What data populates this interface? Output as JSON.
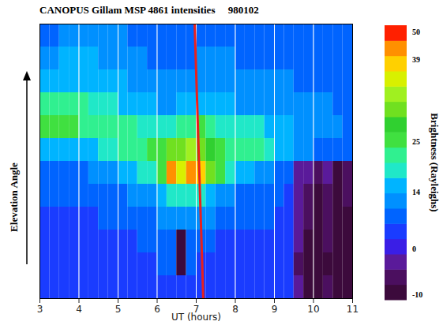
{
  "chart_data": {
    "type": "heatmap",
    "title": "CANOPUS Gillam MSP 4861 intensities     980102",
    "xlabel": "UT (hours)",
    "ylabel": "Elevation Angle",
    "xlim": [
      3,
      11
    ],
    "xticks": [
      3,
      4,
      5,
      6,
      7,
      8,
      9,
      10,
      11
    ],
    "ylim": [
      0,
      180
    ],
    "tick_labels": "x",
    "grid": true,
    "x": [
      3,
      3.25,
      3.5,
      3.75,
      4,
      4.25,
      4.5,
      4.75,
      5,
      5.25,
      5.5,
      5.75,
      6,
      6.25,
      6.5,
      6.75,
      7,
      7.25,
      7.5,
      7.75,
      8,
      8.25,
      8.5,
      8.75,
      9,
      9.25,
      9.5,
      9.75,
      10,
      10.25,
      10.5,
      10.75,
      11
    ],
    "y": [
      0,
      15,
      30,
      45,
      60,
      75,
      90,
      105,
      120,
      135,
      150,
      165,
      180
    ],
    "values": [
      [
        4,
        4,
        4,
        4,
        4,
        4,
        4,
        4,
        4,
        4,
        4,
        4,
        4,
        4,
        4,
        4,
        4,
        4,
        4,
        4,
        4,
        4,
        4,
        4,
        4,
        3,
        -4,
        -8,
        -9,
        -7,
        -10,
        -9
      ],
      [
        4,
        4,
        4,
        4,
        4,
        4,
        4,
        4,
        4,
        4,
        4,
        4,
        6,
        6,
        -12,
        6,
        5,
        5,
        5,
        4,
        4,
        4,
        4,
        4,
        4,
        3,
        -5,
        -9,
        -10,
        -8,
        -11,
        -10
      ],
      [
        4,
        4,
        4,
        4,
        4,
        4,
        5,
        5,
        5,
        5,
        6,
        6,
        7,
        8,
        -12,
        8,
        7,
        6,
        5,
        5,
        5,
        5,
        5,
        5,
        4,
        4,
        -3,
        -8,
        -10,
        -7,
        -11,
        -9
      ],
      [
        5,
        5,
        5,
        5,
        5,
        5,
        6,
        6,
        7,
        7,
        8,
        9,
        11,
        13,
        13,
        13,
        12,
        10,
        8,
        7,
        6,
        6,
        6,
        6,
        5,
        4,
        -4,
        -7,
        -9,
        -6,
        -10,
        -8
      ],
      [
        6,
        6,
        6,
        6,
        6,
        7,
        7,
        8,
        9,
        10,
        11,
        13,
        16,
        19,
        20,
        20,
        19,
        16,
        13,
        11,
        9,
        8,
        7,
        7,
        6,
        5,
        -3,
        -6,
        -8,
        -5,
        -9,
        -7
      ],
      [
        8,
        8,
        8,
        8,
        9,
        10,
        11,
        13,
        15,
        16,
        18,
        20,
        24,
        40,
        36,
        40,
        38,
        30,
        24,
        20,
        17,
        15,
        13,
        11,
        8,
        6,
        -2,
        -4,
        -6,
        -4,
        -8,
        -6
      ],
      [
        15,
        16,
        16,
        15,
        16,
        17,
        18,
        20,
        22,
        23,
        23,
        24,
        25,
        30,
        30,
        33,
        31,
        27,
        25,
        23,
        22,
        22,
        21,
        20,
        16,
        14,
        12,
        10,
        8,
        7,
        6,
        6
      ],
      [
        24,
        25,
        25,
        24,
        23,
        22,
        22,
        22,
        21,
        21,
        20,
        19,
        18,
        19,
        21,
        23,
        24,
        22,
        20,
        19,
        19,
        19,
        18,
        17,
        15,
        14,
        13,
        12,
        11,
        10,
        10,
        9
      ],
      [
        22,
        23,
        23,
        22,
        21,
        20,
        20,
        19,
        17,
        16,
        15,
        14,
        13,
        13,
        14,
        15,
        16,
        16,
        15,
        14,
        13,
        13,
        13,
        13,
        12,
        12,
        11,
        11,
        10,
        10,
        9,
        9
      ],
      [
        16,
        17,
        17,
        16,
        16,
        16,
        15,
        15,
        14,
        13,
        12,
        11,
        10,
        10,
        11,
        12,
        13,
        13,
        13,
        12,
        11,
        10,
        10,
        10,
        10,
        10,
        9,
        9,
        9,
        8,
        8,
        8
      ],
      [
        12,
        13,
        14,
        14,
        14,
        14,
        13,
        13,
        12,
        11,
        10,
        9,
        8,
        8,
        8,
        9,
        10,
        11,
        11,
        10,
        9,
        8,
        8,
        8,
        8,
        8,
        7,
        7,
        7,
        7,
        7,
        7
      ],
      [
        8,
        9,
        10,
        11,
        12,
        12,
        12,
        11,
        10,
        9,
        8,
        7,
        6,
        6,
        6,
        6,
        7,
        8,
        9,
        8,
        7,
        6,
        6,
        6,
        6,
        6,
        6,
        6,
        6,
        6,
        6,
        6
      ]
    ],
    "line": {
      "x": [
        6.96,
        7.18
      ],
      "y": [
        180,
        0
      ],
      "color": "#e8201c"
    },
    "colorbar": {
      "label": "Brightness (Rayleighs)",
      "bounds": [
        -11,
        -7.5,
        -4,
        -1,
        2.5,
        6,
        10,
        14,
        17.5,
        21,
        24,
        27,
        29.5,
        32,
        34.5,
        37,
        40,
        46,
        54
      ],
      "colors": [
        "#3c0a3c",
        "#4b0f5f",
        "#5a1a9a",
        "#3a1ee6",
        "#1a3cff",
        "#0064ff",
        "#0090ff",
        "#00b4ff",
        "#20e8c8",
        "#30f090",
        "#40e040",
        "#30d030",
        "#70e020",
        "#a0f020",
        "#d8f000",
        "#ffd000",
        "#ff9000",
        "#ff2000"
      ],
      "ticks": [
        -10,
        0,
        14,
        25,
        39,
        50
      ]
    }
  }
}
